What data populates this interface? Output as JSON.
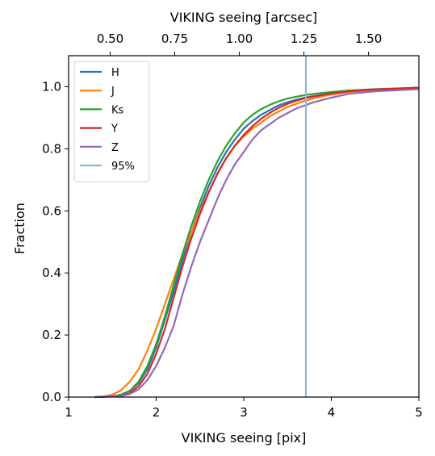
{
  "chart_data": {
    "type": "line",
    "xlabel": "VIKING seeing [pix]",
    "ylabel": "Fraction",
    "top_xlabel": "VIKING seeing [arcsec]",
    "xlim": [
      1,
      5
    ],
    "ylim": [
      0,
      1.1
    ],
    "x_ticks": [
      1,
      2,
      3,
      4,
      5
    ],
    "x_tick_labels": [
      "1",
      "2",
      "3",
      "4",
      "5"
    ],
    "y_ticks": [
      0.0,
      0.2,
      0.4,
      0.6,
      0.8,
      1.0
    ],
    "y_tick_labels": [
      "0.0",
      "0.2",
      "0.4",
      "0.6",
      "0.8",
      "1.0"
    ],
    "top_x_ticks": [
      0.5,
      0.75,
      1.0,
      1.25,
      1.5
    ],
    "top_x_tick_labels": [
      "0.50",
      "0.75",
      "1.00",
      "1.25",
      "1.50"
    ],
    "arcsec_per_pix": 0.339,
    "grid": false,
    "legend": "top-left",
    "series": [
      {
        "name": "H",
        "color": "#1f77b4",
        "x": [
          1.3,
          1.5,
          1.6,
          1.7,
          1.8,
          1.9,
          2.0,
          2.1,
          2.2,
          2.3,
          2.4,
          2.5,
          2.6,
          2.7,
          2.8,
          2.9,
          3.0,
          3.1,
          3.2,
          3.3,
          3.4,
          3.5,
          3.6,
          3.7,
          3.8,
          4.0,
          4.2,
          4.5,
          5.0
        ],
        "y": [
          0.0,
          0.002,
          0.008,
          0.02,
          0.045,
          0.09,
          0.16,
          0.25,
          0.34,
          0.44,
          0.53,
          0.61,
          0.68,
          0.74,
          0.79,
          0.83,
          0.865,
          0.89,
          0.91,
          0.925,
          0.94,
          0.95,
          0.958,
          0.965,
          0.97,
          0.978,
          0.985,
          0.99,
          0.997
        ]
      },
      {
        "name": "J",
        "color": "#ff7f0e",
        "x": [
          1.3,
          1.4,
          1.5,
          1.6,
          1.7,
          1.8,
          1.9,
          2.0,
          2.1,
          2.2,
          2.3,
          2.4,
          2.5,
          2.6,
          2.7,
          2.8,
          2.9,
          3.0,
          3.1,
          3.2,
          3.3,
          3.4,
          3.5,
          3.6,
          3.7,
          3.8,
          4.0,
          4.2,
          4.5,
          5.0
        ],
        "y": [
          0.0,
          0.002,
          0.008,
          0.022,
          0.05,
          0.09,
          0.15,
          0.22,
          0.3,
          0.38,
          0.46,
          0.53,
          0.6,
          0.66,
          0.72,
          0.77,
          0.81,
          0.84,
          0.865,
          0.885,
          0.905,
          0.92,
          0.935,
          0.945,
          0.955,
          0.963,
          0.975,
          0.983,
          0.99,
          0.997
        ]
      },
      {
        "name": "Ks",
        "color": "#2ca02c",
        "x": [
          1.3,
          1.5,
          1.6,
          1.7,
          1.8,
          1.9,
          2.0,
          2.1,
          2.2,
          2.3,
          2.4,
          2.5,
          2.6,
          2.7,
          2.8,
          2.9,
          3.0,
          3.1,
          3.2,
          3.3,
          3.4,
          3.5,
          3.6,
          3.7,
          3.8,
          4.0,
          4.2,
          4.5,
          5.0
        ],
        "y": [
          0.0,
          0.002,
          0.008,
          0.02,
          0.05,
          0.1,
          0.17,
          0.26,
          0.36,
          0.46,
          0.55,
          0.63,
          0.7,
          0.76,
          0.81,
          0.85,
          0.885,
          0.91,
          0.928,
          0.942,
          0.953,
          0.962,
          0.968,
          0.973,
          0.977,
          0.983,
          0.988,
          0.992,
          0.997
        ]
      },
      {
        "name": "Y",
        "color": "#d62728",
        "x": [
          1.3,
          1.6,
          1.7,
          1.8,
          1.9,
          2.0,
          2.1,
          2.2,
          2.3,
          2.4,
          2.5,
          2.6,
          2.7,
          2.8,
          2.9,
          3.0,
          3.1,
          3.2,
          3.3,
          3.4,
          3.5,
          3.6,
          3.7,
          3.8,
          4.0,
          4.2,
          4.5,
          5.0
        ],
        "y": [
          0.0,
          0.004,
          0.013,
          0.035,
          0.075,
          0.14,
          0.22,
          0.32,
          0.42,
          0.51,
          0.59,
          0.66,
          0.72,
          0.77,
          0.81,
          0.845,
          0.873,
          0.897,
          0.916,
          0.932,
          0.945,
          0.955,
          0.963,
          0.969,
          0.978,
          0.985,
          0.991,
          0.997
        ]
      },
      {
        "name": "Z",
        "color": "#9467bd",
        "x": [
          1.3,
          1.6,
          1.7,
          1.8,
          1.9,
          2.0,
          2.1,
          2.2,
          2.3,
          2.4,
          2.5,
          2.6,
          2.7,
          2.8,
          2.9,
          3.0,
          3.1,
          3.2,
          3.3,
          3.4,
          3.5,
          3.6,
          3.7,
          3.8,
          4.0,
          4.2,
          4.5,
          5.0
        ],
        "y": [
          0.0,
          0.003,
          0.01,
          0.025,
          0.055,
          0.1,
          0.16,
          0.23,
          0.33,
          0.42,
          0.5,
          0.57,
          0.64,
          0.7,
          0.75,
          0.79,
          0.83,
          0.86,
          0.88,
          0.9,
          0.915,
          0.93,
          0.94,
          0.95,
          0.965,
          0.977,
          0.985,
          0.992
        ]
      },
      {
        "name": "95%",
        "color": "#86b7d7",
        "type": "vline",
        "x": 3.71
      }
    ]
  }
}
